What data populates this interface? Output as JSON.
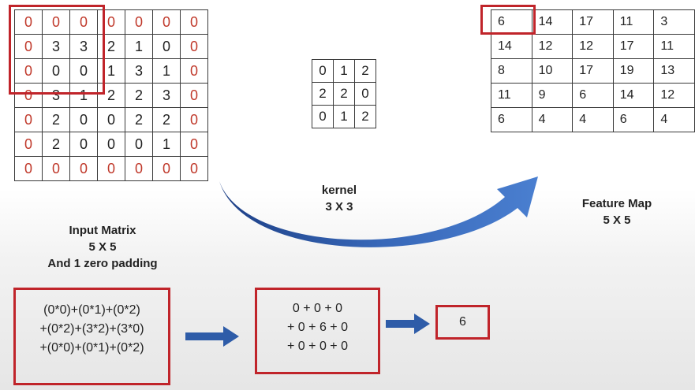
{
  "input_matrix": {
    "rows": [
      [
        "0",
        "0",
        "0",
        "0",
        "0",
        "0",
        "0"
      ],
      [
        "0",
        "3",
        "3",
        "2",
        "1",
        "0",
        "0"
      ],
      [
        "0",
        "0",
        "0",
        "1",
        "3",
        "1",
        "0"
      ],
      [
        "0",
        "3",
        "1",
        "2",
        "2",
        "3",
        "0"
      ],
      [
        "0",
        "2",
        "0",
        "0",
        "2",
        "2",
        "0"
      ],
      [
        "0",
        "2",
        "0",
        "0",
        "0",
        "1",
        "0"
      ],
      [
        "0",
        "0",
        "0",
        "0",
        "0",
        "0",
        "0"
      ]
    ],
    "caption": [
      "Input Matrix",
      "5 X 5",
      "And 1 zero padding"
    ]
  },
  "kernel": {
    "rows": [
      [
        "0",
        "1",
        "2"
      ],
      [
        "2",
        "2",
        "0"
      ],
      [
        "0",
        "1",
        "2"
      ]
    ],
    "caption": [
      "kernel",
      "3 X 3"
    ]
  },
  "feature_map": {
    "rows": [
      [
        "6",
        "14",
        "17",
        "11",
        "3"
      ],
      [
        "14",
        "12",
        "12",
        "17",
        "11"
      ],
      [
        "8",
        "10",
        "17",
        "19",
        "13"
      ],
      [
        "11",
        "9",
        "6",
        "14",
        "12"
      ],
      [
        "6",
        "4",
        "4",
        "6",
        "4"
      ]
    ],
    "caption": [
      "Feature Map",
      "5 X 5"
    ]
  },
  "calculation": {
    "products": [
      "(0*0)+(0*1)+(0*2)",
      "+(0*2)+(3*2)+(3*0)",
      "+(0*0)+(0*1)+(0*2)"
    ],
    "sums": [
      "0 + 0 + 0",
      "+ 0 + 6 + 0",
      "+ 0 + 0 + 0"
    ],
    "result": "6"
  },
  "colors": {
    "highlight": "#c0242a",
    "padding_text": "#c0392b",
    "arrow": "#2e5ca8"
  }
}
